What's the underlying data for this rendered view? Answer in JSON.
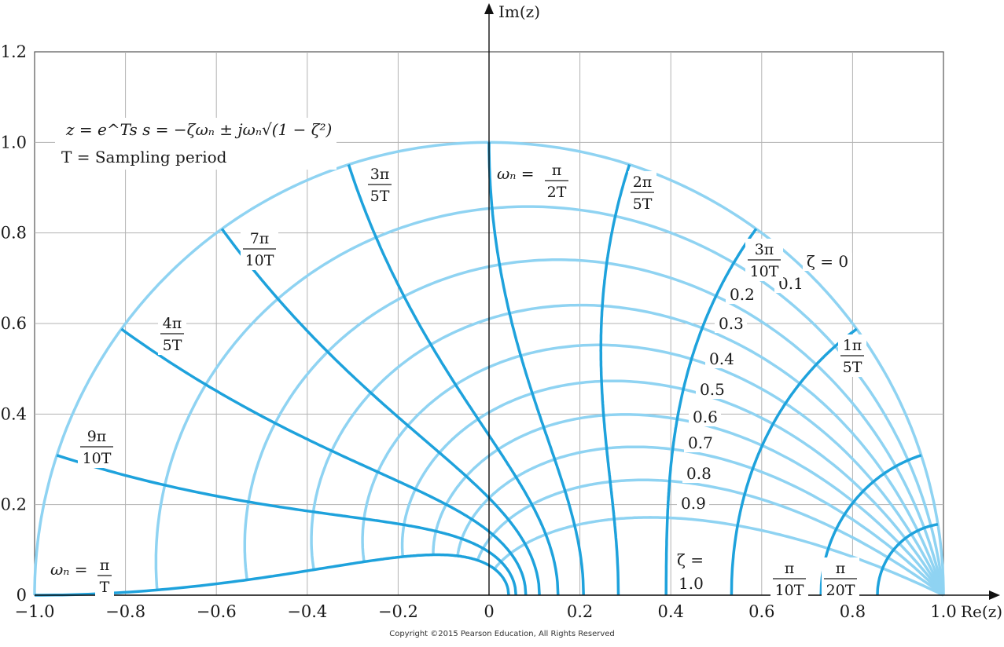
{
  "chart_data": {
    "type": "line",
    "title": "",
    "xlabel": "Re(z)",
    "ylabel": "Im(z)",
    "xlim": [
      -1.0,
      1.0
    ],
    "ylim": [
      0,
      1.2
    ],
    "x_ticks": [
      "−1.0",
      "−0.8",
      "−0.6",
      "−0.4",
      "−0.2",
      "0",
      "0.2",
      "0.4",
      "0.6",
      "0.8",
      "1.0"
    ],
    "y_ticks": [
      "0",
      "0.2",
      "0.4",
      "0.6",
      "0.8",
      "1.0",
      "1.2"
    ],
    "grid": true,
    "zeta_values": [
      0,
      0.1,
      0.2,
      0.3,
      0.4,
      0.5,
      0.6,
      0.7,
      0.8,
      0.9,
      1.0
    ],
    "omega_fractions": [
      1.0,
      0.9,
      0.8,
      0.7,
      0.6,
      0.5,
      0.4,
      0.3,
      0.2,
      0.1,
      0.05
    ],
    "zeta_labels": [
      "ζ = 0",
      "0.1",
      "0.2",
      "0.3",
      "0.4",
      "0.5",
      "0.6",
      "0.7",
      "0.8",
      "0.9"
    ],
    "zeta_one_label": [
      "ζ =",
      "1.0"
    ],
    "omega_labels": [
      {
        "num": "3π",
        "den": "5T"
      },
      {
        "num": "2π",
        "den": "5T"
      },
      {
        "num": "7π",
        "den": "10T"
      },
      {
        "num": "4π",
        "den": "5T"
      },
      {
        "num": "9π",
        "den": "10T"
      },
      {
        "num": "3π",
        "den": "10T"
      },
      {
        "num": "1π",
        "den": "5T"
      },
      {
        "num": "π",
        "den": "10T"
      },
      {
        "num": "π",
        "den": "20T"
      }
    ],
    "omega_half_label": {
      "lhs": "ωₙ =",
      "num": "π",
      "den": "2T"
    },
    "omega_full_label": {
      "lhs": "ωₙ =",
      "num": "π",
      "den": "T"
    },
    "annotation_lines": [
      "z = e^Ts    s = −ζωₙ ± jωₙ√(1 − ζ²)",
      "T = Sampling period"
    ],
    "colors": {
      "zeta": "#8fd3f2",
      "omega": "#1ea2dc",
      "grid": "#b3b3b3",
      "axis": "#111111"
    }
  },
  "copyright": "Copyright ©2015 Pearson Education, All Rights Reserved"
}
